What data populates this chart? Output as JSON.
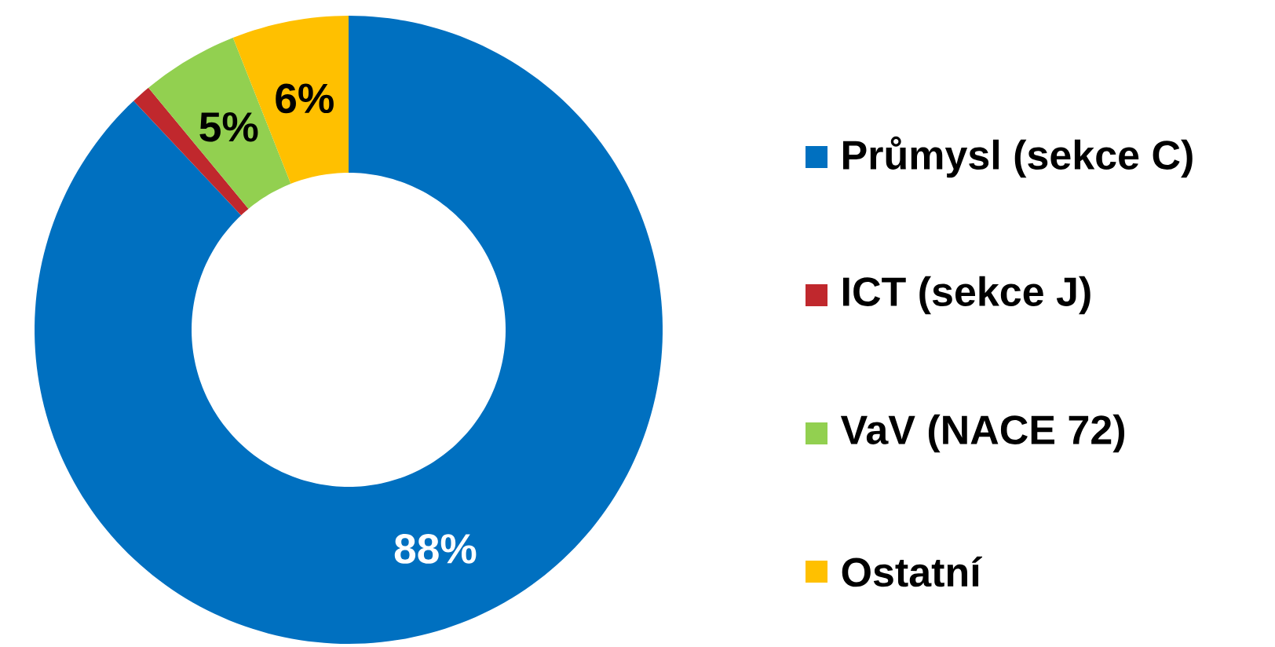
{
  "chart_data": {
    "type": "donut",
    "categories": [
      "Průmysl (sekce C)",
      "ICT (sekce J)",
      "VaV (NACE 72)",
      "Ostatní"
    ],
    "values": [
      88,
      1,
      5,
      6
    ],
    "colors": [
      "#0070c0",
      "#c0282d",
      "#92d050",
      "#ffc000"
    ],
    "value_labels": [
      "88%",
      null,
      "5%",
      "6%"
    ],
    "legend": "right"
  }
}
